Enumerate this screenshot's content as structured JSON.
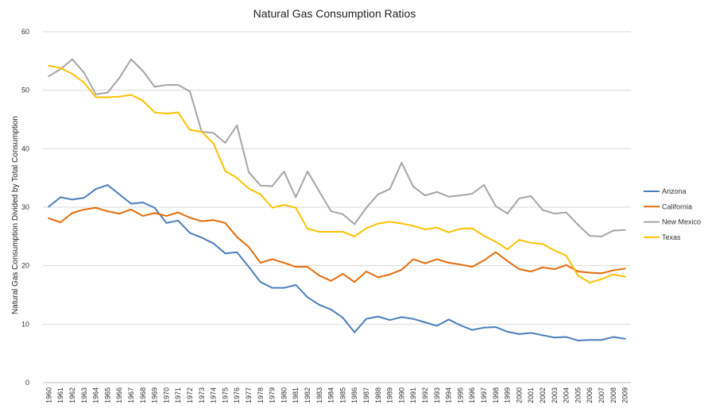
{
  "chart_data": {
    "type": "line",
    "title": "Natural Gas Consumption Ratios",
    "xlabel": "",
    "ylabel": "Natural Gas Consumption Divided by Total Consumption",
    "ylim": [
      0,
      60
    ],
    "yticks": [
      0,
      10,
      20,
      30,
      40,
      50,
      60
    ],
    "grid": true,
    "legend_position": "right",
    "categories": [
      "1960",
      "1961",
      "1962",
      "1963",
      "1964",
      "1965",
      "1966",
      "1967",
      "1968",
      "1969",
      "1970",
      "1971",
      "1972",
      "1973",
      "1974",
      "1975",
      "1976",
      "1977",
      "1978",
      "1979",
      "1980",
      "1981",
      "1982",
      "1983",
      "1984",
      "1985",
      "1986",
      "1987",
      "1988",
      "1989",
      "1990",
      "1991",
      "1992",
      "1993",
      "1994",
      "1995",
      "1996",
      "1997",
      "1998",
      "1999",
      "2000",
      "2001",
      "2002",
      "2003",
      "2004",
      "2005",
      "2006",
      "2007",
      "2008",
      "2009"
    ],
    "series": [
      {
        "name": "Arizona",
        "color": "#4a7ebb",
        "values": [
          30.1,
          31.7,
          31.3,
          31.6,
          33.1,
          33.8,
          32.2,
          30.6,
          30.8,
          29.9,
          27.3,
          27.7,
          25.6,
          24.8,
          23.8,
          22.1,
          22.3,
          19.8,
          17.2,
          16.2,
          16.2,
          16.7,
          14.6,
          13.3,
          12.5,
          11.1,
          8.6,
          10.9,
          11.3,
          10.7,
          11.2,
          10.9,
          10.3,
          9.7,
          10.8,
          9.8,
          9.0,
          9.4,
          9.5,
          8.7,
          8.3,
          8.5,
          8.1,
          7.7,
          7.8,
          7.2,
          7.3,
          7.3,
          7.8,
          7.5
        ]
      },
      {
        "name": "California",
        "color": "#e46c0a",
        "values": [
          28.1,
          27.4,
          29.0,
          29.6,
          29.9,
          29.3,
          28.9,
          29.6,
          28.5,
          29.0,
          28.5,
          29.1,
          28.2,
          27.6,
          27.8,
          27.3,
          24.9,
          23.2,
          20.5,
          21.1,
          20.5,
          19.8,
          19.8,
          18.3,
          17.4,
          18.6,
          17.2,
          19.0,
          18.0,
          18.5,
          19.3,
          21.1,
          20.4,
          21.1,
          20.5,
          20.2,
          19.8,
          20.9,
          22.3,
          20.8,
          19.4,
          19.0,
          19.7,
          19.4,
          20.1,
          19.0,
          18.8,
          18.7,
          19.2,
          19.5
        ]
      },
      {
        "name": "New Mexico",
        "color": "#a5a5a5",
        "values": [
          52.4,
          53.6,
          55.3,
          53.0,
          49.3,
          49.6,
          52.1,
          55.3,
          53.3,
          50.6,
          50.9,
          50.9,
          49.8,
          42.9,
          42.7,
          41.0,
          44.0,
          36.0,
          33.7,
          33.6,
          36.1,
          31.7,
          36.1,
          32.7,
          29.3,
          28.8,
          27.1,
          29.9,
          32.2,
          33.1,
          37.6,
          33.5,
          32.0,
          32.6,
          31.8,
          32.0,
          32.3,
          33.8,
          30.2,
          28.9,
          31.5,
          31.9,
          29.5,
          28.9,
          29.1,
          27.0,
          25.1,
          25.0,
          26.0,
          26.1
        ]
      },
      {
        "name": "Texas",
        "color": "#ffc000",
        "values": [
          54.2,
          53.8,
          52.8,
          51.3,
          48.8,
          48.8,
          48.9,
          49.2,
          48.2,
          46.2,
          46.0,
          46.2,
          43.2,
          42.9,
          40.9,
          36.2,
          35.0,
          33.2,
          32.2,
          29.9,
          30.4,
          29.9,
          26.3,
          25.8,
          25.8,
          25.8,
          25.0,
          26.4,
          27.2,
          27.5,
          27.2,
          26.8,
          26.2,
          26.5,
          25.7,
          26.3,
          26.4,
          25.1,
          24.1,
          22.8,
          24.4,
          23.9,
          23.7,
          22.6,
          21.7,
          18.3,
          17.1,
          17.7,
          18.5,
          18.1
        ]
      }
    ]
  }
}
